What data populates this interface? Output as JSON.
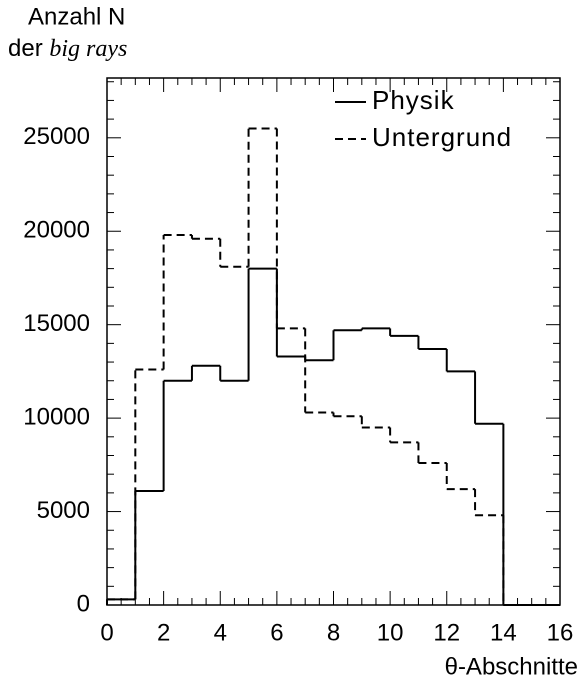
{
  "chart_data": {
    "type": "histogram",
    "ylabel_line1": "Anzahl N",
    "ylabel_line2_prefix": "der",
    "ylabel_line2_italic": "big rays",
    "xlabel": "θ-Abschnitte",
    "bins": [
      0,
      1,
      2,
      3,
      4,
      5,
      6,
      7,
      8,
      9,
      10,
      11,
      12,
      13,
      14,
      15,
      16
    ],
    "series": [
      {
        "name": "Physik",
        "color": "#000000",
        "linestyle": "solid",
        "values": [
          300,
          6100,
          12000,
          12800,
          12000,
          18000,
          13300,
          13100,
          14700,
          14800,
          14400,
          13700,
          12500,
          9700,
          0,
          0
        ]
      },
      {
        "name": "Untergrund",
        "color": "#000000",
        "linestyle": "dashed",
        "values": [
          300,
          12600,
          19800,
          19600,
          18100,
          25500,
          14800,
          10300,
          10100,
          9500,
          8700,
          7600,
          6200,
          4800,
          0,
          0
        ]
      }
    ],
    "xlim": [
      0,
      16
    ],
    "xticks": [
      0,
      2,
      4,
      6,
      8,
      10,
      12,
      14,
      16
    ],
    "ylim": [
      0,
      28200
    ],
    "yticks": [
      0,
      5000,
      10000,
      15000,
      20000,
      25000
    ],
    "legend": "upper right",
    "grid": false
  }
}
